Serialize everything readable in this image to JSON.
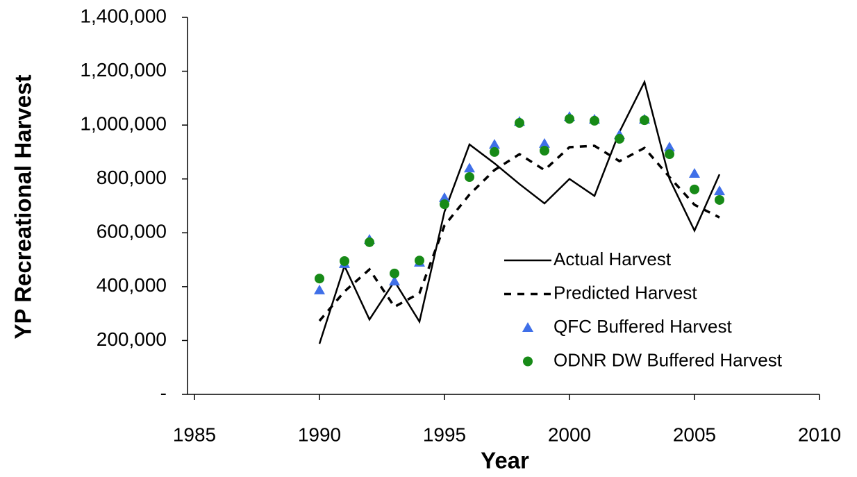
{
  "chart_data": {
    "type": "line",
    "x_label": "Year",
    "y_label": "YP Recreational Harvest",
    "x": [
      1990,
      1991,
      1992,
      1993,
      1994,
      1995,
      1996,
      1997,
      1998,
      1999,
      2000,
      2001,
      2002,
      2003,
      2004,
      2005,
      2006
    ],
    "series": [
      {
        "name": "Actual Harvest",
        "color": "#000000",
        "style": "solid",
        "values": [
          188000,
          477000,
          278000,
          420000,
          270000,
          678000,
          928000,
          858000,
          781000,
          709000,
          800000,
          737000,
          975000,
          1160000,
          800000,
          608000,
          817000
        ]
      },
      {
        "name": "Predicted Harvest",
        "color": "#000000",
        "style": "dashed",
        "values": [
          273000,
          382000,
          464000,
          325000,
          376000,
          627000,
          742000,
          833000,
          892000,
          833000,
          918000,
          923000,
          866000,
          915000,
          807000,
          704000,
          657000
        ]
      },
      {
        "name": "QFC Buffered Harvest",
        "color": "#3f6fe8",
        "style": "triangle",
        "values": [
          387000,
          485000,
          575000,
          420000,
          490000,
          730000,
          840000,
          928000,
          1013000,
          931000,
          1031000,
          1021000,
          964000,
          1021000,
          918000,
          820000,
          755000
        ]
      },
      {
        "name": "ODNR DW Buffered Harvest",
        "color": "#178a17",
        "style": "circle",
        "values": [
          430000,
          495000,
          565000,
          449000,
          497000,
          706000,
          807000,
          900000,
          1008000,
          905000,
          1023000,
          1016000,
          949000,
          1018000,
          892000,
          761000,
          722000
        ]
      }
    ],
    "xlim": [
      1985,
      2010
    ],
    "xticks": [
      1985,
      1990,
      1995,
      2000,
      2005,
      2010
    ],
    "ylim": [
      0,
      1400000
    ],
    "yticks": [
      {
        "value": 0,
        "label": "-"
      },
      {
        "value": 200000,
        "label": "200,000"
      },
      {
        "value": 400000,
        "label": "400,000"
      },
      {
        "value": 600000,
        "label": "600,000"
      },
      {
        "value": 800000,
        "label": "800,000"
      },
      {
        "value": 1000000,
        "label": "1,000,000"
      },
      {
        "value": 1200000,
        "label": "1,200,000"
      },
      {
        "value": 1400000,
        "label": "1,400,000"
      }
    ]
  }
}
